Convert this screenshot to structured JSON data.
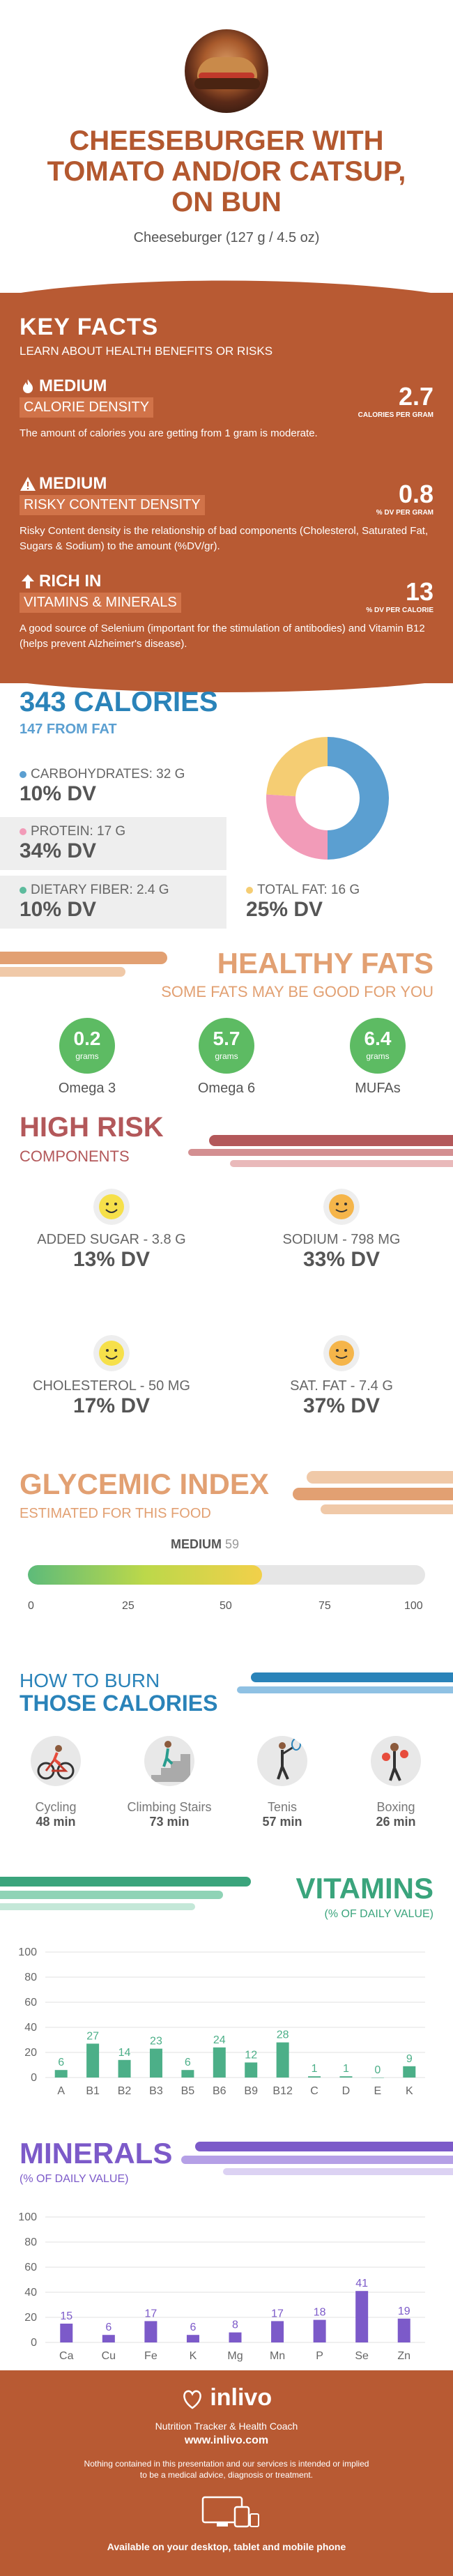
{
  "header": {
    "title_lines": [
      "CHEESEBURGER WITH",
      "TOMATO AND/OR CATSUP,",
      "ON BUN"
    ],
    "serving": "Cheeseburger (127 g / 4.5 oz)"
  },
  "key_facts": {
    "title": "KEY FACTS",
    "subtitle": "LEARN ABOUT HEALTH BENEFITS OR RISKS",
    "items": [
      {
        "level": "MEDIUM",
        "tag": "CALORIE DENSITY",
        "value": "2.7",
        "unit": "CALORIES PER GRAM",
        "desc": "The amount of calories you are getting from 1 gram is moderate.",
        "icon": "flame-icon"
      },
      {
        "level": "MEDIUM",
        "tag": "RISKY CONTENT DENSITY",
        "value": "0.8",
        "unit": "% DV PER GRAM",
        "desc": "Risky Content density is the relationship of bad components (Cholesterol, Saturated Fat, Sugars & Sodium) to the amount (%DV/gr).",
        "icon": "warning-icon"
      },
      {
        "level": "RICH IN",
        "tag": "VITAMINS & MINERALS",
        "value": "13",
        "unit": "% DV PER CALORIE",
        "desc": "A good source of Selenium (important for the stimulation of antibodies) and Vitamin B12 (helps prevent Alzheimer's disease).",
        "icon": "arrow-up-icon"
      }
    ]
  },
  "calories": {
    "title": "343 CALORIES",
    "subtitle": "147 FROM FAT",
    "macros": [
      {
        "label": "CARBOHYDRATES: 32 g",
        "dv": "10% DV",
        "color": "#5b9fd1"
      },
      {
        "label": "PROTEIN: 17 g",
        "dv": "34% DV",
        "color": "#f29bb8"
      },
      {
        "label": "DIETARY FIBER: 2.4 g",
        "dv": "10% DV",
        "color": "#5dbb9d"
      },
      {
        "label": "TOTAL FAT: 16 g",
        "dv": "25% DV",
        "color": "#f5cd73"
      }
    ],
    "donut": [
      {
        "value": 50,
        "color": "#5b9fd1"
      },
      {
        "value": 26,
        "color": "#f29bb8"
      },
      {
        "value": 24,
        "color": "#f5cd73"
      }
    ]
  },
  "healthy_fats": {
    "title": "HEALTHY FATS",
    "subtitle": "SOME FATS MAY BE GOOD FOR YOU",
    "unit": "grams",
    "items": [
      {
        "value": "0.2",
        "name": "Omega 3"
      },
      {
        "value": "5.7",
        "name": "Omega 6"
      },
      {
        "value": "6.4",
        "name": "MUFAs"
      }
    ]
  },
  "high_risk": {
    "title": "HIGH RISK",
    "subtitle": "COMPONENTS",
    "items": [
      {
        "name": "ADDED SUGAR - 3.8 g",
        "dv": "13% DV",
        "face": "#f6e04a"
      },
      {
        "name": "SODIUM - 798 mg",
        "dv": "33% DV",
        "face": "#f5b54a"
      },
      {
        "name": "CHOLESTEROL - 50 mg",
        "dv": "17% DV",
        "face": "#f6e04a"
      },
      {
        "name": "SAT. FAT - 7.4 g",
        "dv": "37% DV",
        "face": "#f5b54a"
      }
    ]
  },
  "glycemic": {
    "title": "GLYCEMIC INDEX",
    "subtitle": "ESTIMATED FOR THIS FOOD",
    "level": "MEDIUM",
    "value": 59,
    "value_label": "59",
    "ticks": [
      "0",
      "25",
      "50",
      "75",
      "100"
    ]
  },
  "burn": {
    "title": "HOW TO BURN",
    "subtitle": "THOSE CALORIES",
    "items": [
      {
        "name": "Cycling",
        "minutes": "48 min",
        "icon": "cycling-icon"
      },
      {
        "name": "Climbing Stairs",
        "minutes": "73 min",
        "icon": "stairs-icon"
      },
      {
        "name": "Tenis",
        "minutes": "57 min",
        "icon": "tennis-icon"
      },
      {
        "name": "Boxing",
        "minutes": "26 min",
        "icon": "boxing-icon"
      }
    ]
  },
  "vitamins": {
    "title": "VITAMINS",
    "subtitle": "(% OF DAILY VALUE)",
    "color": "#4caf88"
  },
  "minerals": {
    "title": "MINERALS",
    "subtitle": "(% OF DAILY VALUE)",
    "color": "#7c5ac9"
  },
  "chart_data": [
    {
      "type": "bar",
      "categories": [
        "A",
        "B1",
        "B2",
        "B3",
        "B5",
        "B6",
        "B9",
        "B12",
        "C",
        "D",
        "E",
        "K"
      ],
      "values": [
        6,
        27,
        14,
        23,
        6,
        24,
        12,
        28,
        1,
        1,
        0,
        9
      ],
      "title": "VITAMINS",
      "xlabel": "",
      "ylabel": "(% OF DAILY VALUE)",
      "yticks": [
        "0",
        "20",
        "40",
        "60",
        "80",
        "100"
      ],
      "ylim": [
        0,
        100
      ],
      "grid": true
    },
    {
      "type": "bar",
      "categories": [
        "Ca",
        "Cu",
        "Fe",
        "K",
        "Mg",
        "Mn",
        "P",
        "Se",
        "Zn"
      ],
      "values": [
        15,
        6,
        17,
        6,
        8,
        17,
        18,
        41,
        19
      ],
      "title": "MINERALS",
      "xlabel": "",
      "ylabel": "(% OF DAILY VALUE)",
      "yticks": [
        "0",
        "20",
        "40",
        "60",
        "80",
        "100"
      ],
      "ylim": [
        0,
        100
      ],
      "grid": true
    }
  ],
  "footer": {
    "brand": "inlivo",
    "tagline": "Nutrition Tracker & Health Coach",
    "url": "www.inlivo.com",
    "disclaimer_lines": [
      "Nothing contained in this presentation and our services is intended or implied",
      "to be a medical advice, diagnosis or treatment."
    ],
    "devices_text": "Available on your desktop, tablet and mobile phone"
  }
}
